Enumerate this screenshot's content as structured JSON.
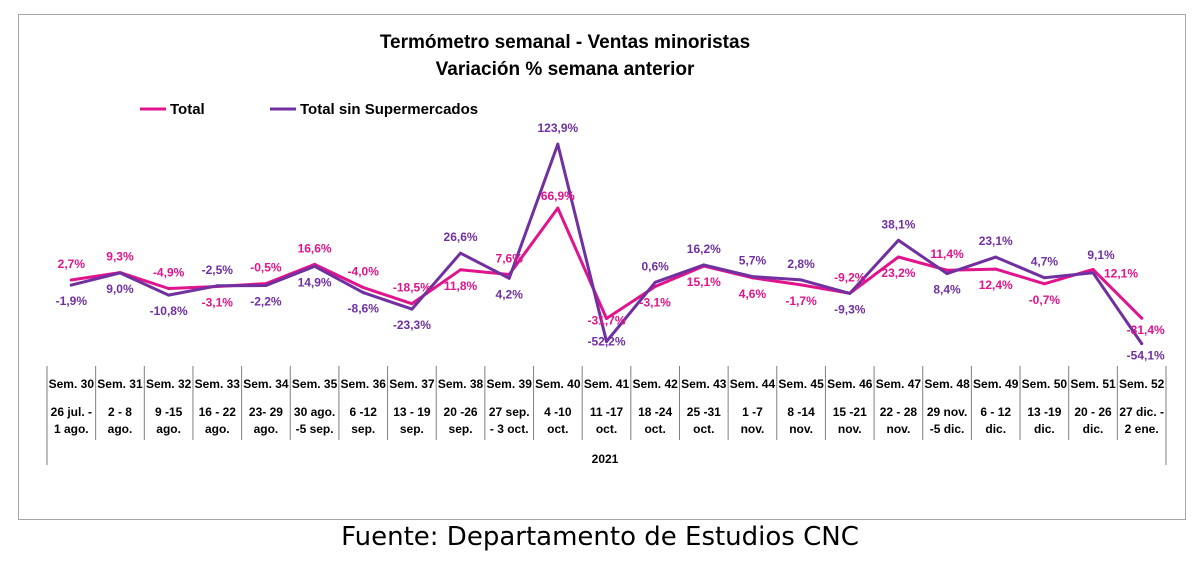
{
  "chart_data": {
    "type": "line",
    "title": "Termómetro semanal - Ventas minoristas",
    "subtitle": "Variación % semana anterior",
    "legend_position": "top-left",
    "grid": false,
    "year_label": "2021",
    "ylim": [
      -70,
      140
    ],
    "categories": [
      {
        "week": "Sem. 30",
        "dates": [
          "26 jul. -",
          "1 ago."
        ]
      },
      {
        "week": "Sem. 31",
        "dates": [
          "2 - 8",
          "ago."
        ]
      },
      {
        "week": "Sem. 32",
        "dates": [
          "9 -15",
          "ago."
        ]
      },
      {
        "week": "Sem. 33",
        "dates": [
          "16 - 22",
          "ago."
        ]
      },
      {
        "week": "Sem. 34",
        "dates": [
          "23- 29",
          "ago."
        ]
      },
      {
        "week": "Sem. 35",
        "dates": [
          "30 ago.",
          "-5 sep."
        ]
      },
      {
        "week": "Sem. 36",
        "dates": [
          "6 -12",
          "sep."
        ]
      },
      {
        "week": "Sem. 37",
        "dates": [
          "13 - 19",
          "sep."
        ]
      },
      {
        "week": "Sem. 38",
        "dates": [
          "20 -26",
          "sep."
        ]
      },
      {
        "week": "Sem. 39",
        "dates": [
          "27 sep.",
          "- 3 oct."
        ]
      },
      {
        "week": "Sem. 40",
        "dates": [
          "4 -10",
          "oct."
        ]
      },
      {
        "week": "Sem. 41",
        "dates": [
          "11 -17",
          "oct."
        ]
      },
      {
        "week": "Sem. 42",
        "dates": [
          "18 -24",
          "oct."
        ]
      },
      {
        "week": "Sem. 43",
        "dates": [
          "25 -31",
          "oct."
        ]
      },
      {
        "week": "Sem. 44",
        "dates": [
          "1 -7",
          "nov."
        ]
      },
      {
        "week": "Sem. 45",
        "dates": [
          "8 -14",
          "nov."
        ]
      },
      {
        "week": "Sem. 46",
        "dates": [
          "15 -21",
          "nov."
        ]
      },
      {
        "week": "Sem. 47",
        "dates": [
          "22 - 28",
          "nov."
        ]
      },
      {
        "week": "Sem. 48",
        "dates": [
          "29 nov.",
          "-5 dic."
        ]
      },
      {
        "week": "Sem. 49",
        "dates": [
          "6 - 12",
          "dic."
        ]
      },
      {
        "week": "Sem. 50",
        "dates": [
          "13 -19",
          "dic."
        ]
      },
      {
        "week": "Sem. 51",
        "dates": [
          "20 - 26",
          "dic."
        ]
      },
      {
        "week": "Sem. 52",
        "dates": [
          "27 dic. -",
          "2 ene."
        ]
      }
    ],
    "series": [
      {
        "name": "Total",
        "color": "#e0148c",
        "values": [
          2.7,
          9.3,
          -4.9,
          -3.1,
          -0.5,
          16.6,
          -4.0,
          -18.5,
          11.8,
          7.6,
          66.9,
          -31.7,
          -3.1,
          15.1,
          4.6,
          -1.7,
          -9.2,
          23.2,
          11.4,
          12.4,
          -0.7,
          12.1,
          -31.4
        ],
        "labels": [
          "2,7%",
          "9,3%",
          "-4,9%",
          "-3,1%",
          "-0,5%",
          "16,6%",
          "-4,0%",
          "-18,5%",
          "11,8%",
          "7,6%",
          "66,9%",
          "-31,7%",
          "-3,1%",
          "15,1%",
          "4,6%",
          "-1,7%",
          "-9,2%",
          "23,2%",
          "11,4%",
          "12,4%",
          "-0,7%",
          "12,1%",
          "-31,4%"
        ]
      },
      {
        "name": "Total sin Supermercados",
        "color": "#7030a0",
        "values": [
          -1.9,
          9.0,
          -10.8,
          -2.5,
          -2.2,
          14.9,
          -8.6,
          -23.3,
          26.6,
          4.2,
          123.9,
          -52.2,
          0.6,
          16.2,
          5.7,
          2.8,
          -9.3,
          38.1,
          8.4,
          23.1,
          4.7,
          9.1,
          -54.1
        ],
        "labels": [
          "-1,9%",
          "9,0%",
          "-10,8%",
          "-2,5%",
          "-2,2%",
          "14,9%",
          "-8,6%",
          "-23,3%",
          "26,6%",
          "4,2%",
          "123,9%",
          "-52,2%",
          "0,6%",
          "16,2%",
          "5,7%",
          "2,8%",
          "-9,3%",
          "38,1%",
          "8,4%",
          "23,1%",
          "4,7%",
          "9,1%",
          "-54,1%"
        ]
      }
    ]
  },
  "source": "Fuente: Departamento de Estudios CNC"
}
